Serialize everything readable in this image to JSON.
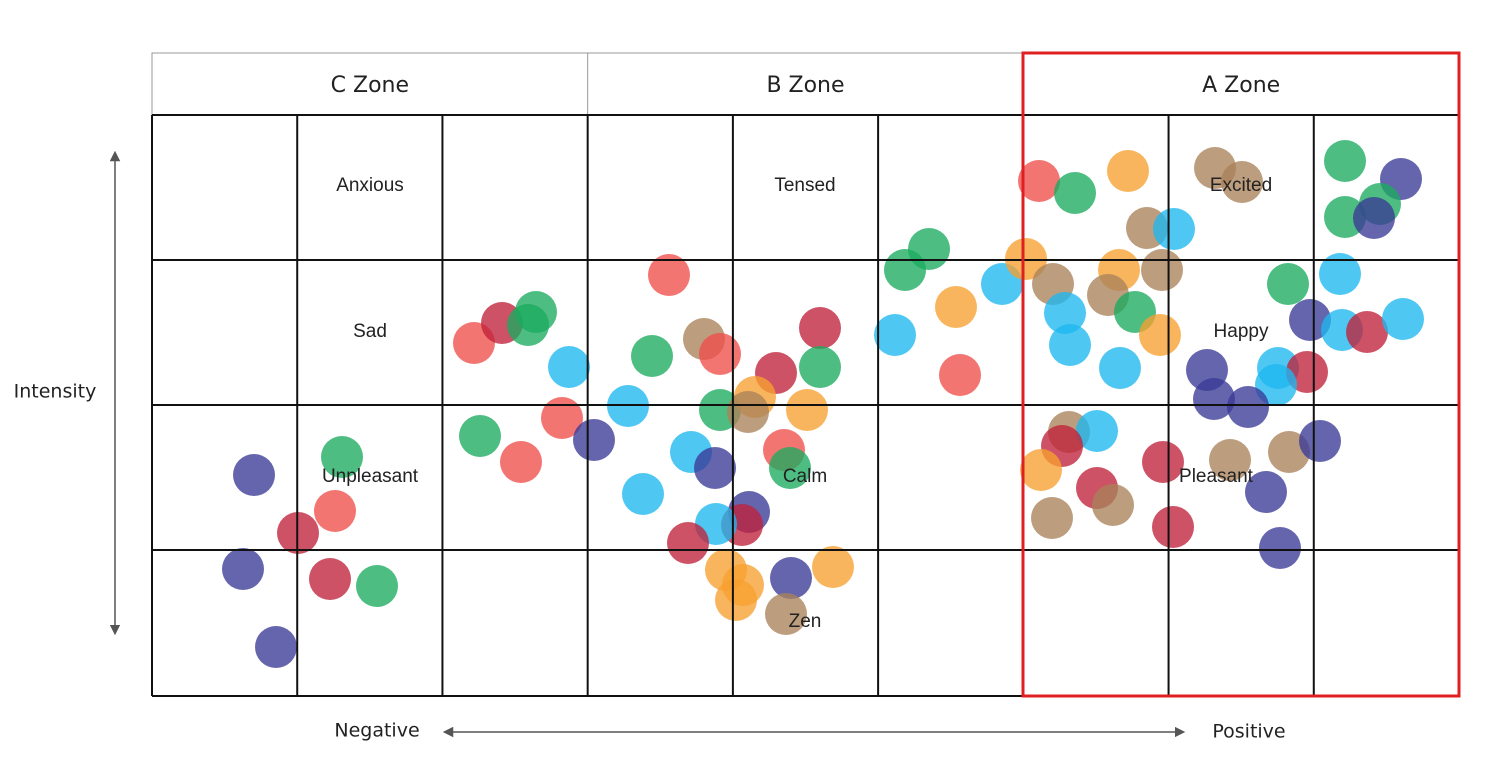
{
  "zones": [
    "C Zone",
    "B Zone",
    "A Zone"
  ],
  "emotions": [
    "Anxious",
    "Tensed",
    "Excited",
    "Sad",
    "Happy",
    "Unpleasant",
    "Calm",
    "Pleasant",
    "Zen"
  ],
  "axes": {
    "vertical": "Intensity",
    "horizontal_left": "Negative",
    "horizontal_right": "Positive"
  }
}
